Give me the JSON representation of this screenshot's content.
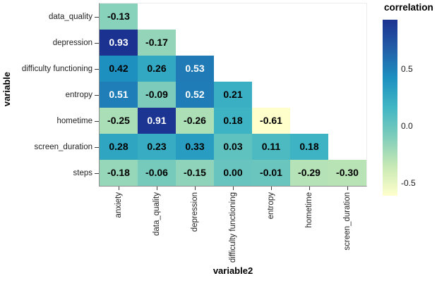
{
  "chart_data": {
    "type": "heatmap",
    "title": "",
    "xlabel": "variable2",
    "ylabel": "variable",
    "rows": [
      "data_quality",
      "depression",
      "difficulty functioning",
      "entropy",
      "hometime",
      "screen_duration",
      "steps"
    ],
    "cols": [
      "anxiety",
      "data_quality",
      "depression",
      "difficulty functioning",
      "entropy",
      "hometime",
      "screen_duration"
    ],
    "values": [
      [
        -0.13
      ],
      [
        0.93,
        -0.17
      ],
      [
        0.42,
        0.26,
        0.53
      ],
      [
        0.51,
        -0.09,
        0.52,
        0.21
      ],
      [
        -0.25,
        0.91,
        -0.26,
        0.18,
        -0.61
      ],
      [
        0.28,
        0.23,
        0.33,
        0.03,
        0.11,
        0.18
      ],
      [
        -0.18,
        -0.06,
        -0.15,
        0.0,
        -0.01,
        -0.29,
        -0.3
      ]
    ],
    "value_decimals": 2,
    "grid": false,
    "legend": {
      "title": "correlation",
      "position": "right",
      "ticks": [
        {
          "value": 0.5,
          "label": "0.5"
        },
        {
          "value": 0.0,
          "label": "0.0"
        },
        {
          "value": -0.5,
          "label": "-0.5"
        }
      ]
    },
    "color_scale": {
      "name": "YlGnBu",
      "palette": [
        "#ffffcc",
        "#c7e9b4",
        "#7fcdbb",
        "#41b6c4",
        "#1d91c0",
        "#225ea8",
        "#1c3290"
      ],
      "domain": [
        -0.61,
        0.93
      ]
    },
    "cell_text_colors": {
      "dark": "#000000",
      "light": "#ffffff"
    }
  }
}
